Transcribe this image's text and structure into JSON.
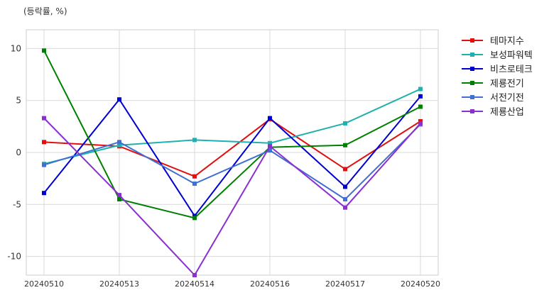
{
  "chart_data": {
    "type": "line",
    "unit_label": "(등락률, %)",
    "categories": [
      "20240510",
      "20240513",
      "20240514",
      "20240516",
      "20240517",
      "20240520"
    ],
    "ylim": [
      -11.8,
      11.8
    ],
    "yticks": [
      10,
      5,
      0,
      -5,
      -10
    ],
    "ytick_labels": [
      "10",
      "5",
      "0",
      "-5",
      "-10"
    ],
    "grid": true,
    "legend_position": "outside-right",
    "series": [
      {
        "name": "테마지수",
        "color": "#e01010",
        "values": [
          1.0,
          0.6,
          -2.3,
          3.2,
          -1.6,
          3.0
        ]
      },
      {
        "name": "보성파워텍",
        "color": "#20b0b0",
        "values": [
          -1.1,
          0.7,
          1.2,
          0.9,
          2.8,
          6.1
        ]
      },
      {
        "name": "비츠로테크",
        "color": "#0000d0",
        "values": [
          -3.9,
          5.1,
          -6.1,
          3.3,
          -3.3,
          5.4
        ]
      },
      {
        "name": "제룡전기",
        "color": "#008000",
        "values": [
          9.8,
          -4.5,
          -6.3,
          0.5,
          0.7,
          4.4
        ]
      },
      {
        "name": "서전기전",
        "color": "#4070d0",
        "values": [
          -1.2,
          1.0,
          -3.0,
          0.2,
          -4.5,
          2.7
        ]
      },
      {
        "name": "제룡산업",
        "color": "#8a30d0",
        "values": [
          3.3,
          -4.1,
          -11.8,
          0.6,
          -5.3,
          2.8
        ]
      }
    ]
  }
}
